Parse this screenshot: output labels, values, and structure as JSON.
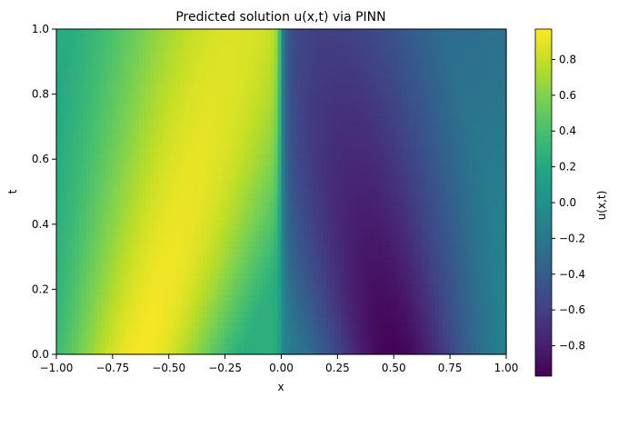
{
  "chart_data": {
    "type": "heatmap",
    "title": "Predicted solution u(x,t) via PINN",
    "xlabel": "x",
    "ylabel": "t",
    "xlim": [
      -1.0,
      1.0
    ],
    "ylim": [
      0.0,
      1.0
    ],
    "x_ticks": [
      "-1.00",
      "-0.75",
      "-0.50",
      "-0.25",
      "0.00",
      "0.25",
      "0.50",
      "0.75",
      "1.00"
    ],
    "y_ticks": [
      "0.0",
      "0.2",
      "0.4",
      "0.6",
      "0.8",
      "1.0"
    ],
    "colormap": "viridis",
    "colorbar": {
      "label": "u(x,t)",
      "range": [
        -0.97,
        0.97
      ],
      "ticks": [
        "0.8",
        "0.6",
        "0.4",
        "0.2",
        "0.0",
        "−0.2",
        "−0.4",
        "−0.6",
        "−0.8"
      ],
      "tick_values": [
        0.8,
        0.6,
        0.4,
        0.2,
        0.0,
        -0.2,
        -0.4,
        -0.6,
        -0.8
      ]
    },
    "field": {
      "description_equation": "",
      "samples": [
        {
          "t": 0.0,
          "x": [
            -1.0,
            -0.5,
            -0.25,
            0.0,
            0.25,
            0.5,
            1.0
          ],
          "u": [
            0.0,
            0.93,
            0.72,
            0.0,
            -0.72,
            -0.93,
            0.0
          ]
        },
        {
          "t": 0.5,
          "x": [
            -1.0,
            -0.5,
            -0.25,
            0.0,
            0.25,
            0.5,
            1.0
          ],
          "u": [
            0.2,
            0.62,
            0.85,
            0.0,
            -0.93,
            -0.72,
            -0.18
          ]
        },
        {
          "t": 1.0,
          "x": [
            -1.0,
            -0.5,
            -0.25,
            0.0,
            0.25,
            0.5,
            1.0
          ],
          "u": [
            0.22,
            0.5,
            0.72,
            0.0,
            -0.58,
            -0.5,
            -0.24
          ]
        }
      ]
    }
  }
}
